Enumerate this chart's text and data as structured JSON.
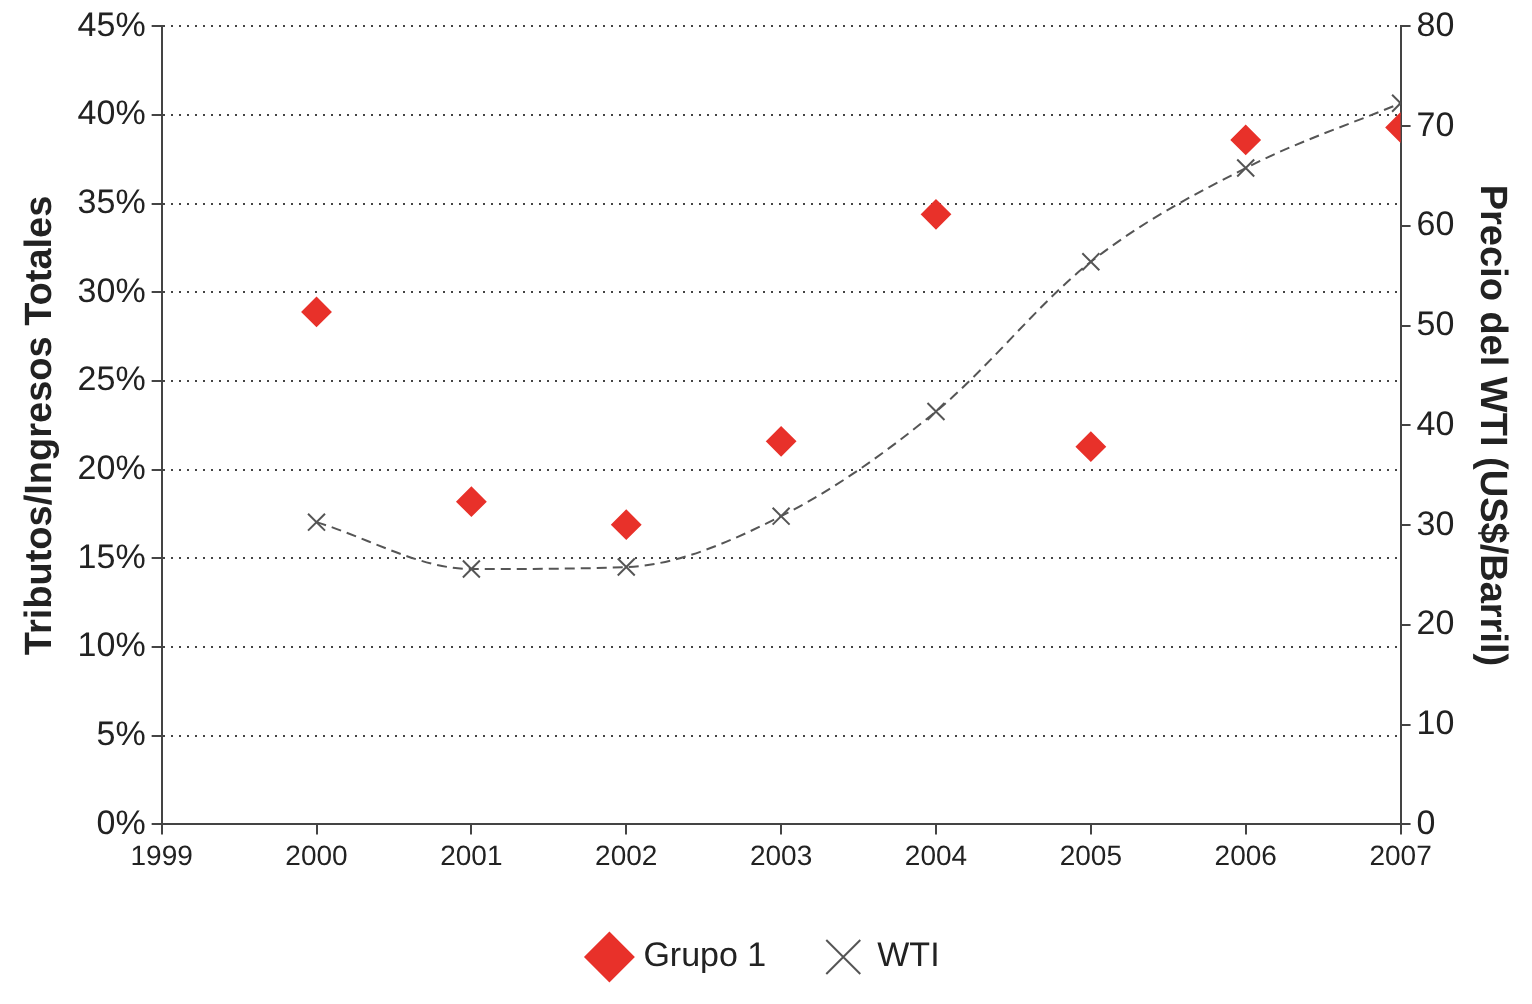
{
  "chart_data": {
    "type": "scatter",
    "ylabel": "Tributos/Ingresos Totales",
    "y2label": "Precio del WTI (US$/Barril)",
    "x": [
      2000,
      2001,
      2002,
      2003,
      2004,
      2005,
      2006,
      2007
    ],
    "series": [
      {
        "name": "Grupo 1",
        "type": "scatter",
        "color": "#e8312a",
        "marker": "diamond",
        "values": [
          28.9,
          18.2,
          16.9,
          21.6,
          34.4,
          21.3,
          38.6,
          39.3
        ]
      },
      {
        "name": "WTI",
        "type": "line",
        "axis": "y2",
        "color": "#555555",
        "marker": "cross",
        "line_style": "dashed",
        "values": [
          30.3,
          25.6,
          25.8,
          30.9,
          41.4,
          56.4,
          65.8,
          72.3
        ]
      }
    ],
    "xlim": [
      1999,
      2007
    ],
    "xticks": [
      1999,
      2000,
      2001,
      2002,
      2003,
      2004,
      2005,
      2006,
      2007
    ],
    "ylim": [
      0,
      45
    ],
    "yticks": [
      {
        "value": 0,
        "label": "0%"
      },
      {
        "value": 5,
        "label": "5%"
      },
      {
        "value": 10,
        "label": "10%"
      },
      {
        "value": 15,
        "label": "15%"
      },
      {
        "value": 20,
        "label": "20%"
      },
      {
        "value": 25,
        "label": "25%"
      },
      {
        "value": 30,
        "label": "30%"
      },
      {
        "value": 35,
        "label": "35%"
      },
      {
        "value": 40,
        "label": "40%"
      },
      {
        "value": 45,
        "label": "45%"
      }
    ],
    "y2lim": [
      0,
      80
    ],
    "y2ticks": [
      0,
      10,
      20,
      30,
      40,
      50,
      60,
      70,
      80
    ],
    "grid": "y",
    "legend": "bottom"
  }
}
